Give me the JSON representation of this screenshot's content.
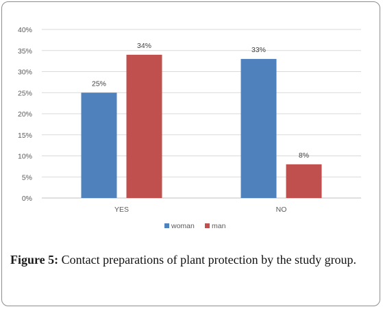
{
  "caption": {
    "label": "Figure 5:",
    "text": "Contact preparations of plant protection by the study group."
  },
  "chart_data": {
    "type": "bar",
    "categories": [
      "YES",
      "NO"
    ],
    "series": [
      {
        "name": "woman",
        "values": [
          25,
          33
        ],
        "labels": [
          "25%",
          "33%"
        ],
        "color": "#4f81bd"
      },
      {
        "name": "man",
        "values": [
          34,
          8
        ],
        "labels": [
          "34%",
          "8%"
        ],
        "color": "#c0504d"
      }
    ],
    "ylim": [
      0,
      40
    ],
    "yticks": [
      0,
      5,
      10,
      15,
      20,
      25,
      30,
      35,
      40
    ],
    "ytick_labels": [
      "0%",
      "5%",
      "10%",
      "15%",
      "20%",
      "25%",
      "30%",
      "35%",
      "40%"
    ],
    "grid": true,
    "legend": "bottom-center",
    "gridline_color": "#d9d9d9",
    "axis_color": "#bfbfbf"
  }
}
